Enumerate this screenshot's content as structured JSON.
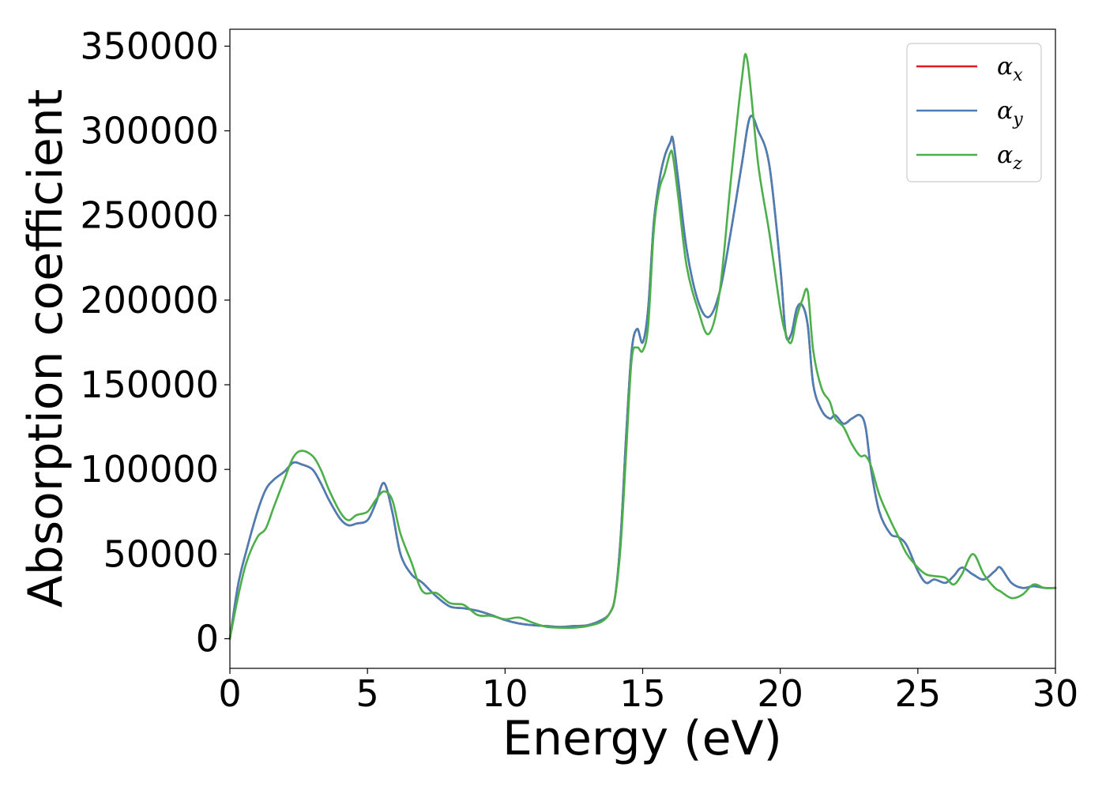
{
  "chart_data": {
    "type": "line",
    "title": "",
    "xlabel": "Energy (eV)",
    "ylabel": "Absorption coefficient",
    "xlim": [
      0,
      30
    ],
    "ylim": [
      -17500,
      360000
    ],
    "xticks": [
      0,
      5,
      10,
      15,
      20,
      25,
      30
    ],
    "xtick_labels": [
      "0",
      "5",
      "10",
      "15",
      "20",
      "25",
      "30"
    ],
    "yticks": [
      0,
      50000,
      100000,
      150000,
      200000,
      250000,
      300000,
      350000
    ],
    "ytick_labels": [
      "0",
      "50000",
      "100000",
      "150000",
      "200000",
      "250000",
      "300000",
      "350000"
    ],
    "grid": false,
    "legend_position": "top-right",
    "series": [
      {
        "name": "α_x",
        "legend_base": "α",
        "legend_sub": "x",
        "color": "#e41a1c",
        "x": [
          0,
          0.3,
          0.6,
          1,
          1.3,
          1.6,
          2,
          2.3,
          2.6,
          3,
          3.3,
          3.6,
          4,
          4.3,
          4.6,
          5,
          5.3,
          5.6,
          5.9,
          6.2,
          6.6,
          7,
          7.5,
          8,
          8.5,
          9,
          9.5,
          10,
          10.5,
          11,
          11.5,
          12,
          12.5,
          13,
          13.5,
          13.8,
          14,
          14.2,
          14.4,
          14.6,
          14.8,
          15,
          15.2,
          15.4,
          15.6,
          15.8,
          16,
          16.1,
          16.3,
          16.6,
          17,
          17.4,
          17.8,
          18.2,
          18.6,
          18.9,
          19.2,
          19.6,
          20,
          20.2,
          20.4,
          20.6,
          20.8,
          21,
          21.2,
          21.5,
          21.8,
          22,
          22.3,
          22.6,
          22.9,
          23.1,
          23.3,
          23.6,
          24,
          24.3,
          24.6,
          25,
          25.3,
          25.6,
          26,
          26.3,
          26.6,
          27,
          27.4,
          27.8,
          28,
          28.4,
          28.8,
          29.2,
          29.6,
          30
        ],
        "y": [
          0,
          32000,
          52000,
          75000,
          88000,
          94000,
          99000,
          104000,
          103000,
          100000,
          92000,
          82000,
          71000,
          67000,
          68000,
          70000,
          80000,
          92000,
          75000,
          50000,
          38000,
          33000,
          25000,
          19000,
          18000,
          16500,
          14000,
          11000,
          9000,
          8000,
          7500,
          7000,
          7500,
          8000,
          11000,
          15000,
          25000,
          60000,
          120000,
          170000,
          183000,
          175000,
          195000,
          245000,
          270000,
          285000,
          293000,
          295000,
          270000,
          230000,
          200000,
          190000,
          205000,
          240000,
          280000,
          308000,
          300000,
          280000,
          220000,
          180000,
          180000,
          195000,
          197000,
          185000,
          150000,
          135000,
          130000,
          132000,
          127000,
          130000,
          132000,
          125000,
          100000,
          75000,
          62000,
          60000,
          55000,
          40000,
          33000,
          35000,
          33000,
          37000,
          42000,
          38000,
          35000,
          40000,
          42000,
          33000,
          30000,
          31000,
          30000,
          30000
        ]
      },
      {
        "name": "α_y",
        "legend_base": "α",
        "legend_sub": "y",
        "color": "#4a7fb5",
        "x": [
          0,
          0.3,
          0.6,
          1,
          1.3,
          1.6,
          2,
          2.3,
          2.6,
          3,
          3.3,
          3.6,
          4,
          4.3,
          4.6,
          5,
          5.3,
          5.6,
          5.9,
          6.2,
          6.6,
          7,
          7.5,
          8,
          8.5,
          9,
          9.5,
          10,
          10.5,
          11,
          11.5,
          12,
          12.5,
          13,
          13.5,
          13.8,
          14,
          14.2,
          14.4,
          14.6,
          14.8,
          15,
          15.2,
          15.4,
          15.6,
          15.8,
          16,
          16.1,
          16.3,
          16.6,
          17,
          17.4,
          17.8,
          18.2,
          18.6,
          18.9,
          19.2,
          19.6,
          20,
          20.2,
          20.4,
          20.6,
          20.8,
          21,
          21.2,
          21.5,
          21.8,
          22,
          22.3,
          22.6,
          22.9,
          23.1,
          23.3,
          23.6,
          24,
          24.3,
          24.6,
          25,
          25.3,
          25.6,
          26,
          26.3,
          26.6,
          27,
          27.4,
          27.8,
          28,
          28.4,
          28.8,
          29.2,
          29.6,
          30
        ],
        "y": [
          0,
          32000,
          52000,
          75000,
          88000,
          94000,
          99000,
          104000,
          103000,
          100000,
          92000,
          82000,
          71000,
          67000,
          68000,
          70000,
          80000,
          92000,
          75000,
          50000,
          38000,
          33000,
          25000,
          19000,
          18000,
          16500,
          14000,
          11000,
          9000,
          8000,
          7500,
          7000,
          7500,
          8000,
          11000,
          15000,
          25000,
          60000,
          120000,
          170000,
          183000,
          175000,
          195000,
          245000,
          270000,
          285000,
          293000,
          295000,
          270000,
          230000,
          200000,
          190000,
          205000,
          240000,
          280000,
          308000,
          300000,
          280000,
          220000,
          180000,
          180000,
          195000,
          197000,
          185000,
          150000,
          135000,
          130000,
          132000,
          127000,
          130000,
          132000,
          125000,
          100000,
          75000,
          62000,
          60000,
          55000,
          40000,
          33000,
          35000,
          33000,
          37000,
          42000,
          38000,
          35000,
          40000,
          42000,
          33000,
          30000,
          31000,
          30000,
          30000
        ]
      },
      {
        "name": "α_z",
        "legend_base": "α",
        "legend_sub": "z",
        "color": "#4daf4a",
        "x": [
          0,
          0.3,
          0.6,
          1,
          1.3,
          1.6,
          2,
          2.3,
          2.6,
          3,
          3.3,
          3.6,
          4,
          4.3,
          4.6,
          5,
          5.3,
          5.6,
          5.9,
          6.2,
          6.6,
          7,
          7.5,
          8,
          8.5,
          9,
          9.5,
          10,
          10.5,
          11,
          11.5,
          12,
          12.5,
          13,
          13.5,
          13.8,
          14,
          14.2,
          14.4,
          14.6,
          14.8,
          15,
          15.2,
          15.4,
          15.6,
          15.8,
          16,
          16.1,
          16.3,
          16.6,
          17,
          17.4,
          17.8,
          18.2,
          18.6,
          18.8,
          19.2,
          19.6,
          20,
          20.2,
          20.4,
          20.6,
          20.8,
          21,
          21.2,
          21.5,
          21.8,
          22,
          22.3,
          22.6,
          22.9,
          23.1,
          23.3,
          23.6,
          24,
          24.3,
          24.6,
          25,
          25.3,
          25.6,
          26,
          26.3,
          26.6,
          27,
          27.4,
          27.8,
          28,
          28.4,
          28.8,
          29.2,
          29.6,
          30
        ],
        "y": [
          0,
          25000,
          45000,
          60000,
          65000,
          78000,
          95000,
          107000,
          111000,
          108000,
          100000,
          88000,
          75000,
          70000,
          73000,
          75000,
          82000,
          87000,
          82000,
          62000,
          45000,
          28000,
          27000,
          21000,
          20000,
          14000,
          13500,
          11500,
          12500,
          9500,
          7000,
          6500,
          6500,
          7500,
          10000,
          15000,
          25000,
          55000,
          110000,
          165000,
          172000,
          170000,
          185000,
          240000,
          265000,
          275000,
          287000,
          285000,
          260000,
          220000,
          195000,
          180000,
          205000,
          270000,
          330000,
          342000,
          280000,
          240000,
          195000,
          180000,
          175000,
          190000,
          200000,
          205000,
          170000,
          148000,
          140000,
          130000,
          125000,
          115000,
          108000,
          108000,
          102000,
          85000,
          70000,
          60000,
          50000,
          42000,
          38000,
          37000,
          36000,
          32000,
          38000,
          50000,
          38000,
          30000,
          28000,
          24000,
          26000,
          32000,
          30000,
          30000
        ]
      }
    ]
  }
}
